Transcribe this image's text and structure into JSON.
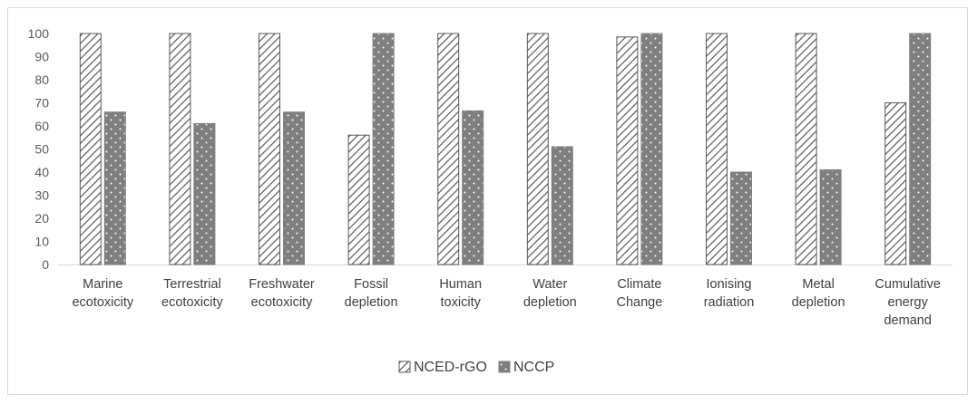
{
  "chart_data": {
    "type": "bar",
    "title": "",
    "xlabel": "",
    "ylabel": "",
    "ylim": [
      0,
      100
    ],
    "yticks": [
      0,
      10,
      20,
      30,
      40,
      50,
      60,
      70,
      80,
      90,
      100
    ],
    "grid": false,
    "legend_position": "bottom",
    "categories": [
      [
        "Marine",
        "ecotoxicity"
      ],
      [
        "Terrestrial",
        "ecotoxicity"
      ],
      [
        "Freshwater",
        "ecotoxicity"
      ],
      [
        "Fossil",
        "depletion"
      ],
      [
        "Human",
        "toxicity"
      ],
      [
        "Water",
        "depletion"
      ],
      [
        "Climate",
        "Change"
      ],
      [
        "Ionising",
        "radiation"
      ],
      [
        "Metal",
        "depletion"
      ],
      [
        "Cumulative",
        "energy",
        "demand"
      ]
    ],
    "series": [
      {
        "name": "NCED-rGO",
        "pattern": "diagonal-hatch",
        "color": "#595959",
        "values": [
          100,
          100,
          100,
          56,
          100,
          100,
          98.5,
          100,
          100,
          70
        ]
      },
      {
        "name": "NCCP",
        "pattern": "dotted-fill",
        "color": "#7f7f7f",
        "values": [
          66,
          61,
          66,
          100,
          66.5,
          51,
          100,
          40,
          41,
          100
        ]
      }
    ]
  }
}
